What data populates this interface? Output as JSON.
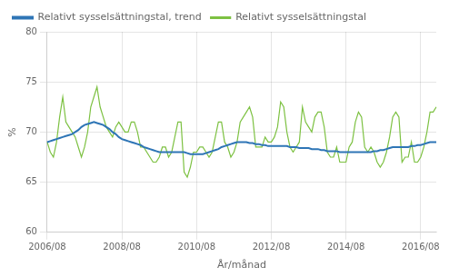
{
  "chart_data": {
    "type": "line",
    "xlabel": "År/månad",
    "ylabel": "%",
    "categories": [
      "2006/08",
      null,
      null,
      null,
      null,
      null,
      null,
      null,
      null,
      null,
      null,
      null,
      null,
      null,
      null,
      null,
      null,
      null,
      null,
      null,
      null,
      null,
      null,
      null,
      "2008/08",
      null,
      null,
      null,
      null,
      null,
      null,
      null,
      null,
      null,
      null,
      null,
      null,
      null,
      null,
      null,
      null,
      null,
      null,
      null,
      null,
      null,
      null,
      null,
      "2010/08",
      null,
      null,
      null,
      null,
      null,
      null,
      null,
      null,
      null,
      null,
      null,
      null,
      null,
      null,
      null,
      null,
      null,
      null,
      null,
      null,
      null,
      null,
      null,
      "2012/08",
      null,
      null,
      null,
      null,
      null,
      null,
      null,
      null,
      null,
      null,
      null,
      null,
      null,
      null,
      null,
      null,
      null,
      null,
      null,
      null,
      null,
      null,
      null,
      "2014/08",
      null,
      null,
      null,
      null,
      null,
      null,
      null,
      null,
      null,
      null,
      null,
      null,
      null,
      null,
      null,
      null,
      null,
      null,
      null,
      null,
      null,
      null,
      null,
      "2016/08",
      null,
      null,
      null,
      null,
      null
    ],
    "series": [
      {
        "name": "Relativt sysselsättningstal",
        "color": "#7dc142",
        "values": [
          69.0,
          68.0,
          67.5,
          69.0,
          71.5,
          73.5,
          71.0,
          70.5,
          70.0,
          69.5,
          68.5,
          67.5,
          68.5,
          70.0,
          72.5,
          73.5,
          74.5,
          72.5,
          71.5,
          70.5,
          70.0,
          69.5,
          70.5,
          71.0,
          70.5,
          70.0,
          70.0,
          71.0,
          71.0,
          70.0,
          68.5,
          68.5,
          68.0,
          67.5,
          67.0,
          67.0,
          67.5,
          68.5,
          68.5,
          67.5,
          68.0,
          69.5,
          71.0,
          71.0,
          66.0,
          65.5,
          66.5,
          68.0,
          68.0,
          68.5,
          68.5,
          68.0,
          67.5,
          68.0,
          69.5,
          71.0,
          71.0,
          69.0,
          68.5,
          67.5,
          68.0,
          69.0,
          71.0,
          71.5,
          72.0,
          72.5,
          71.5,
          68.5,
          68.5,
          68.5,
          69.5,
          69.0,
          69.0,
          69.5,
          70.5,
          73.0,
          72.5,
          70.0,
          68.5,
          68.0,
          68.5,
          69.0,
          72.5,
          71.0,
          70.5,
          70.0,
          71.5,
          72.0,
          72.0,
          70.5,
          68.0,
          67.5,
          67.5,
          68.5,
          67.0,
          67.0,
          67.0,
          68.5,
          69.0,
          71.0,
          72.0,
          71.5,
          68.5,
          68.0,
          68.5,
          68.0,
          67.0,
          66.5,
          67.0,
          68.0,
          69.5,
          71.5,
          72.0,
          71.5,
          67.0,
          67.5,
          67.5,
          69.0,
          67.0,
          67.0,
          67.5,
          68.5,
          70.0,
          72.0,
          72.0,
          72.5
        ]
      },
      {
        "name": "Relativt sysselsättningstal, trend",
        "color": "#2e75b6",
        "values": [
          69.0,
          69.1,
          69.2,
          69.3,
          69.4,
          69.5,
          69.6,
          69.7,
          69.8,
          70.0,
          70.2,
          70.5,
          70.7,
          70.8,
          70.9,
          71.0,
          70.9,
          70.8,
          70.7,
          70.5,
          70.3,
          70.0,
          69.8,
          69.5,
          69.3,
          69.2,
          69.1,
          69.0,
          68.9,
          68.8,
          68.7,
          68.5,
          68.4,
          68.3,
          68.2,
          68.1,
          68.0,
          68.0,
          68.0,
          68.0,
          68.0,
          68.0,
          68.0,
          68.0,
          68.0,
          67.9,
          67.8,
          67.8,
          67.8,
          67.8,
          67.8,
          67.9,
          68.0,
          68.1,
          68.2,
          68.3,
          68.5,
          68.6,
          68.7,
          68.8,
          68.9,
          69.0,
          69.0,
          69.0,
          69.0,
          68.9,
          68.9,
          68.8,
          68.8,
          68.7,
          68.7,
          68.6,
          68.6,
          68.6,
          68.6,
          68.6,
          68.6,
          68.6,
          68.5,
          68.5,
          68.5,
          68.4,
          68.4,
          68.4,
          68.4,
          68.3,
          68.3,
          68.3,
          68.2,
          68.2,
          68.1,
          68.1,
          68.1,
          68.1,
          68.0,
          68.0,
          68.0,
          68.0,
          68.0,
          68.0,
          68.0,
          68.0,
          68.0,
          68.0,
          68.0,
          68.1,
          68.1,
          68.2,
          68.2,
          68.3,
          68.4,
          68.5,
          68.5,
          68.5,
          68.5,
          68.5,
          68.5,
          68.6,
          68.6,
          68.7,
          68.7,
          68.8,
          68.9,
          69.0,
          69.0,
          69.0
        ]
      }
    ],
    "ylim": [
      60,
      80
    ],
    "yticks": [
      60,
      65,
      70,
      75,
      80
    ],
    "grid": true,
    "legend": "upper left"
  }
}
